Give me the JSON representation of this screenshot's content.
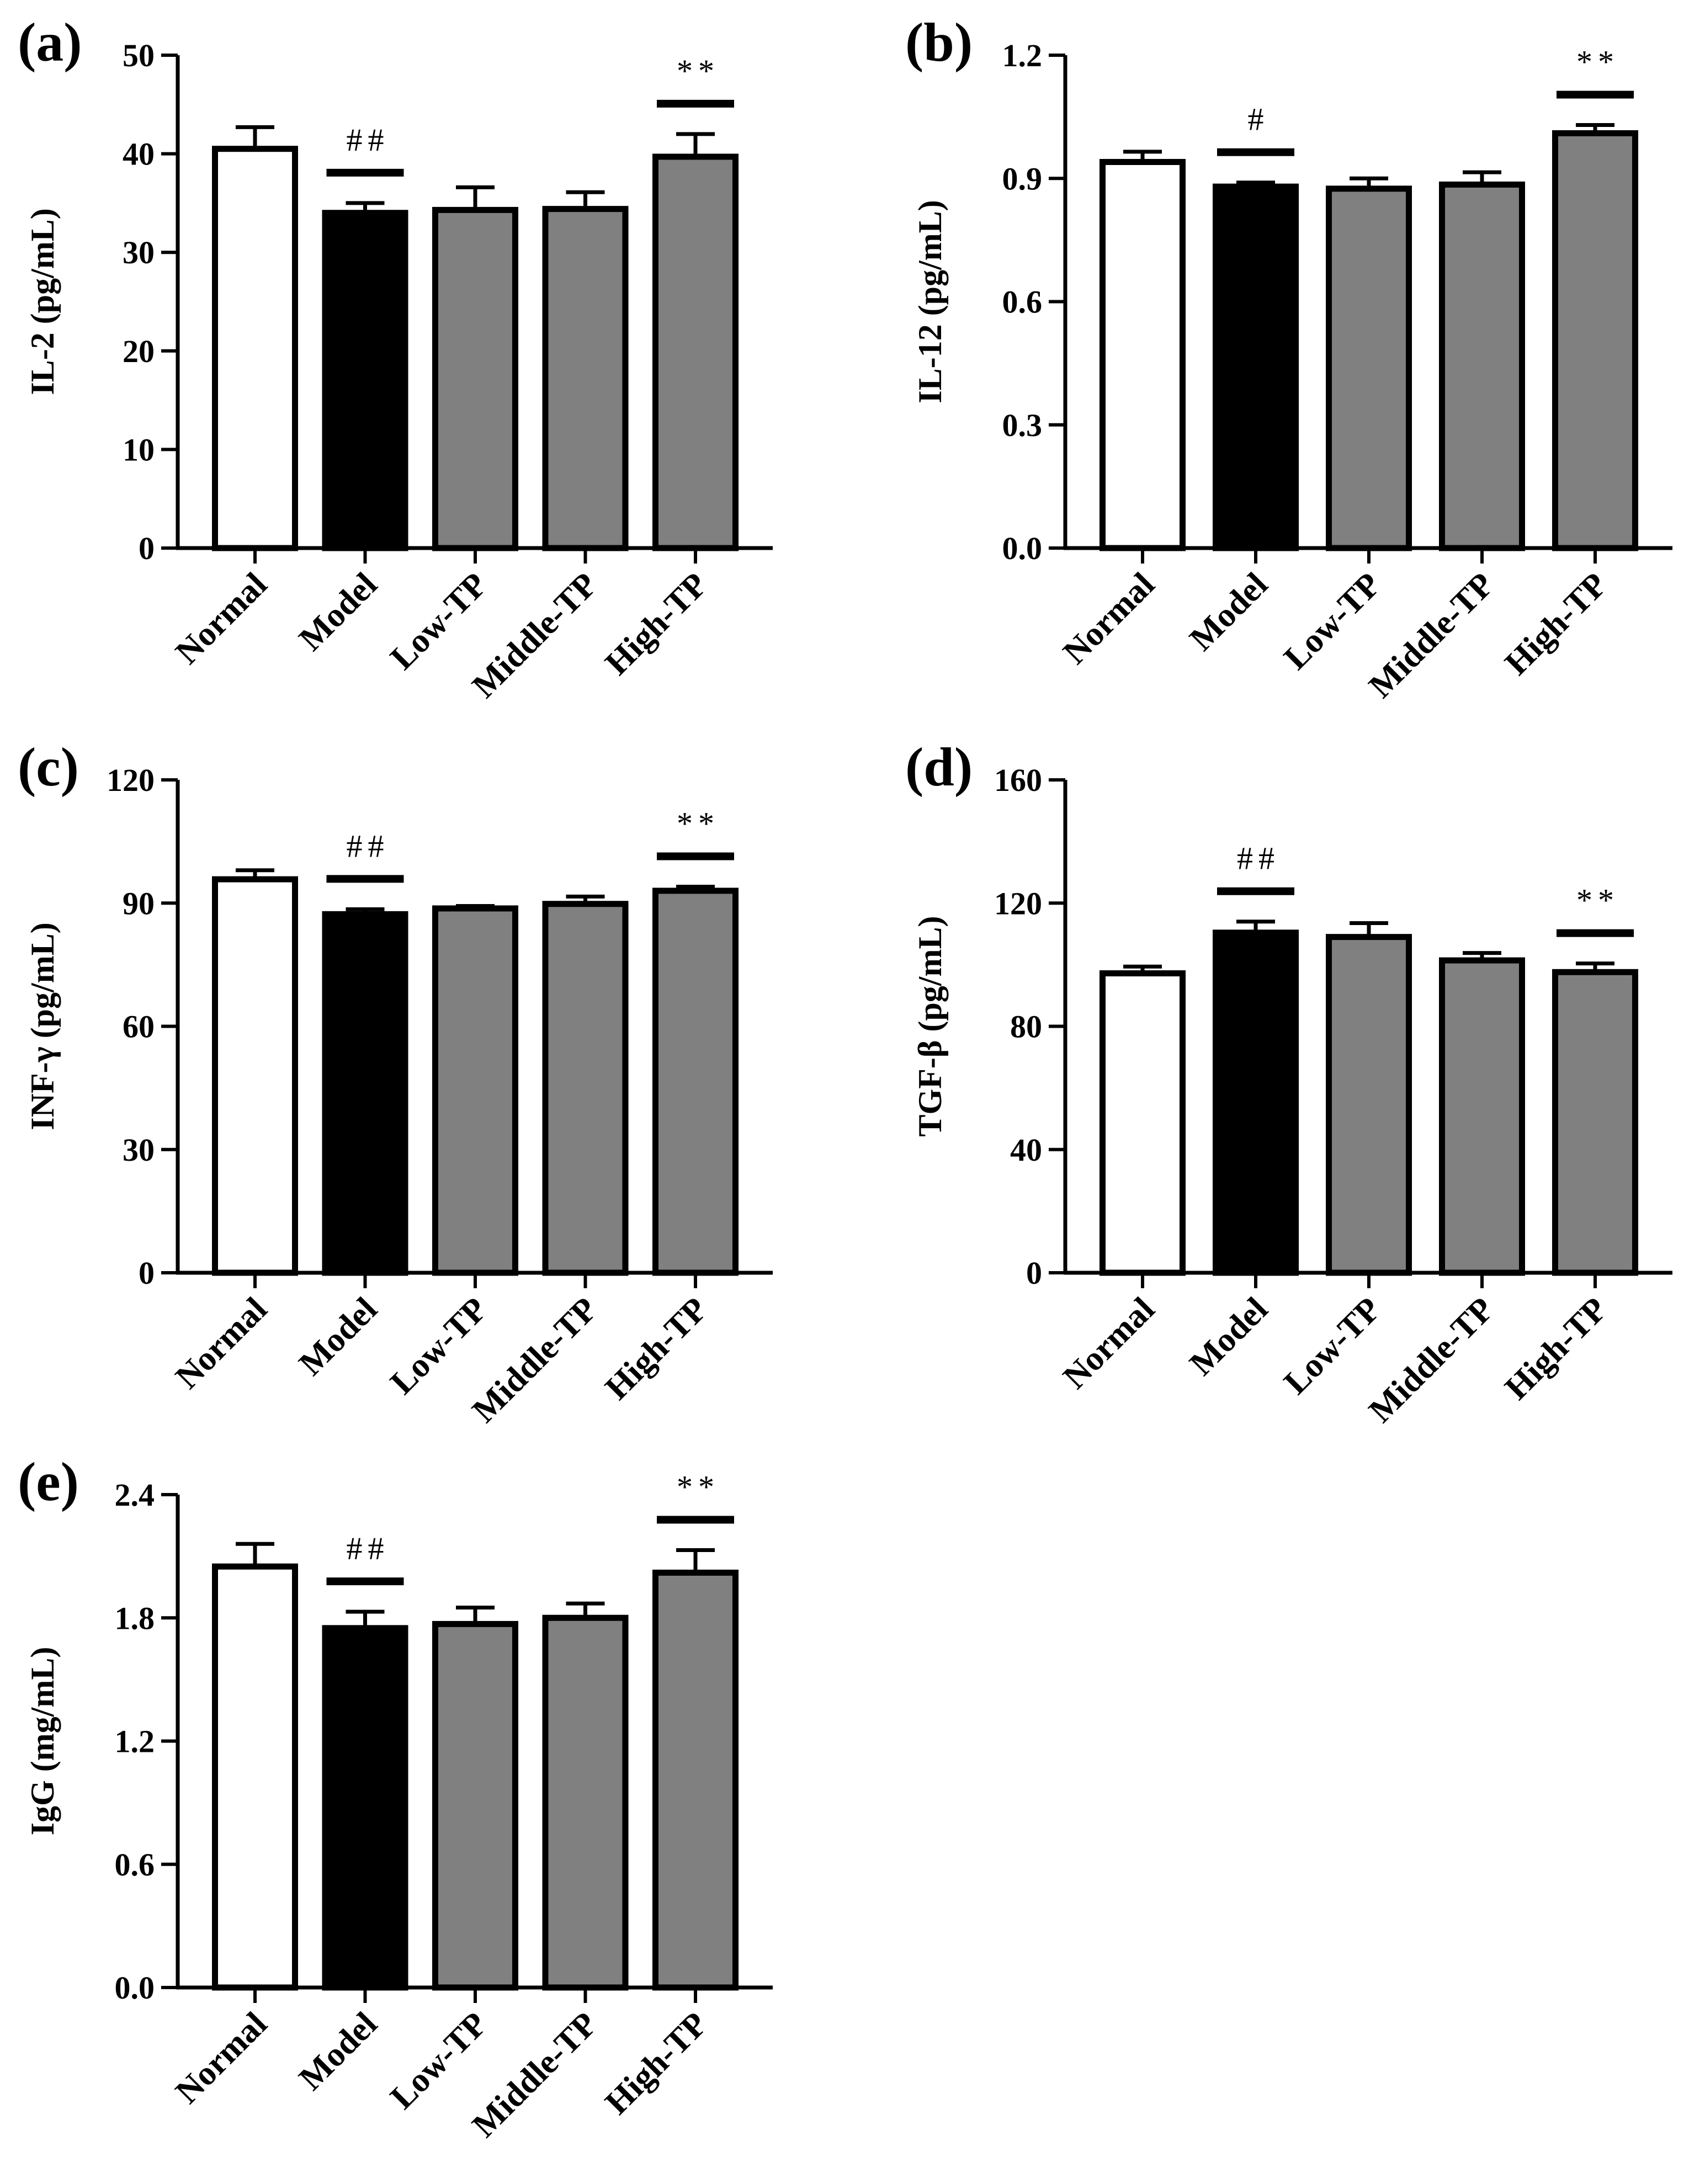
{
  "chart_data": [
    {
      "type": "bar",
      "panel": "(a)",
      "ylabel": "IL-2 (pg/mL)",
      "categories": [
        "Normal",
        "Model",
        "Low-TP",
        "Middle-TP",
        "High-TP"
      ],
      "values": [
        40.5,
        34.0,
        34.3,
        34.4,
        39.7
      ],
      "errors": [
        2.2,
        1.0,
        2.3,
        1.7,
        2.3
      ],
      "fill_colors": [
        "#ffffff",
        "#000000",
        "#808080",
        "#808080",
        "#808080"
      ],
      "ylim": [
        0,
        50
      ],
      "yticks": [
        0,
        10,
        20,
        30,
        40,
        50
      ],
      "tick_labels": [
        "0",
        "10",
        "20",
        "30",
        "40",
        "50"
      ],
      "significance": [
        {
          "category": "Model",
          "label": "##"
        },
        {
          "category": "High-TP",
          "label": "**"
        }
      ]
    },
    {
      "type": "bar",
      "panel": "(b)",
      "ylabel": "IL-12 (pg/mL)",
      "categories": [
        "Normal",
        "Model",
        "Low-TP",
        "Middle-TP",
        "High-TP"
      ],
      "values": [
        0.94,
        0.88,
        0.875,
        0.885,
        1.01
      ],
      "errors": [
        0.025,
        0.01,
        0.025,
        0.03,
        0.02
      ],
      "fill_colors": [
        "#ffffff",
        "#000000",
        "#808080",
        "#808080",
        "#808080"
      ],
      "ylim": [
        0,
        1.2
      ],
      "yticks": [
        0,
        0.3,
        0.6,
        0.9,
        1.2
      ],
      "tick_labels": [
        "0.0",
        "0.3",
        "0.6",
        "0.9",
        "1.2"
      ],
      "significance": [
        {
          "category": "Model",
          "label": "#"
        },
        {
          "category": "High-TP",
          "label": "**"
        }
      ]
    },
    {
      "type": "bar",
      "panel": "(c)",
      "ylabel": "INF-γ (pg/mL)",
      "categories": [
        "Normal",
        "Model",
        "Low-TP",
        "Middle-TP",
        "High-TP"
      ],
      "values": [
        95.8,
        87.3,
        88.7,
        89.8,
        93.0
      ],
      "errors": [
        2.2,
        1.2,
        0.6,
        1.8,
        1.0
      ],
      "fill_colors": [
        "#ffffff",
        "#000000",
        "#808080",
        "#808080",
        "#808080"
      ],
      "ylim": [
        0,
        120
      ],
      "yticks": [
        0,
        30,
        60,
        90,
        120
      ],
      "tick_labels": [
        "0",
        "30",
        "60",
        "90",
        "120"
      ],
      "significance": [
        {
          "category": "Model",
          "label": "##"
        },
        {
          "category": "High-TP",
          "label": "**"
        }
      ]
    },
    {
      "type": "bar",
      "panel": "(d)",
      "ylabel": "TGF-β (pg/mL)",
      "categories": [
        "Normal",
        "Model",
        "Low-TP",
        "Middle-TP",
        "High-TP"
      ],
      "values": [
        97.2,
        110.4,
        109.0,
        101.4,
        97.6
      ],
      "errors": [
        2.2,
        3.6,
        4.5,
        2.4,
        2.8
      ],
      "fill_colors": [
        "#ffffff",
        "#000000",
        "#808080",
        "#808080",
        "#808080"
      ],
      "ylim": [
        0,
        160
      ],
      "yticks": [
        0,
        40,
        80,
        120,
        160
      ],
      "tick_labels": [
        "0",
        "40",
        "80",
        "120",
        "160"
      ],
      "significance": [
        {
          "category": "Model",
          "label": "##"
        },
        {
          "category": "High-TP",
          "label": "**"
        }
      ]
    },
    {
      "type": "bar",
      "panel": "(e)",
      "ylabel": "IgG (mg/mL)",
      "categories": [
        "Normal",
        "Model",
        "Low-TP",
        "Middle-TP",
        "High-TP"
      ],
      "values": [
        2.05,
        1.75,
        1.77,
        1.8,
        2.02
      ],
      "errors": [
        0.11,
        0.08,
        0.08,
        0.07,
        0.11
      ],
      "fill_colors": [
        "#ffffff",
        "#000000",
        "#808080",
        "#808080",
        "#808080"
      ],
      "ylim": [
        0,
        2.4
      ],
      "yticks": [
        0,
        0.6,
        1.2,
        1.8,
        2.4
      ],
      "tick_labels": [
        "0.0",
        "0.6",
        "1.2",
        "1.8",
        "2.4"
      ],
      "significance": [
        {
          "category": "Model",
          "label": "##"
        },
        {
          "category": "High-TP",
          "label": "**"
        }
      ]
    }
  ]
}
